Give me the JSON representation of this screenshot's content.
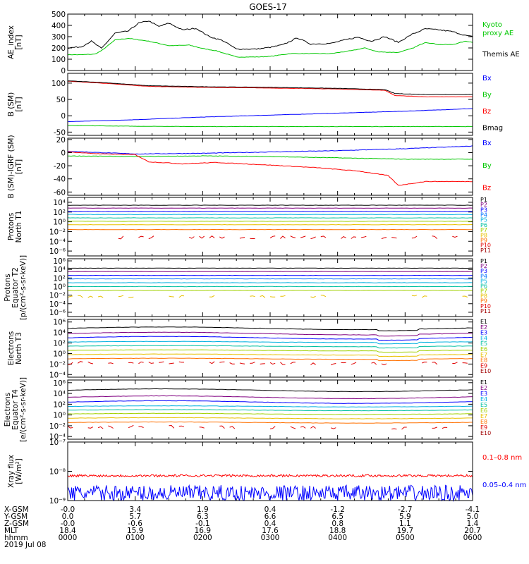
{
  "title": "GOES-17",
  "footer": {
    "row_labels": [
      "X-GSM",
      "Y-GSM",
      "Z-GSM",
      "MLT",
      "hhmm"
    ],
    "date": "2019 Jul 08",
    "columns": [
      [
        "-0.0",
        "0.0",
        "-0.0",
        "18.4",
        "0000"
      ],
      [
        "3.4",
        "5.7",
        "-0.6",
        "15.9",
        "0100"
      ],
      [
        "1.9",
        "6.3",
        "-0.1",
        "16.9",
        "0200"
      ],
      [
        "0.4",
        "6.6",
        "0.4",
        "17.6",
        "0300"
      ],
      [
        "-1.2",
        "6.5",
        "0.8",
        "18.8",
        "0400"
      ],
      [
        "-2.7",
        "5.9",
        "1.1",
        "19.7",
        "0500"
      ],
      [
        "-4.1",
        "5.0",
        "1.4",
        "20.7",
        "0600"
      ]
    ]
  },
  "chart_data": [
    {
      "type": "line",
      "ylabel": "AE_index\n[nT]",
      "ylim": [
        0,
        500
      ],
      "yticks": [
        "0",
        "100",
        "200",
        "300",
        "400",
        "500"
      ],
      "x_hours": [
        0,
        6
      ],
      "legend": [
        {
          "text": "Kyoto",
          "color": "#00c800"
        },
        {
          "text": "proxy AE",
          "color": "#00c800"
        },
        {
          "text": "Themis AE",
          "color": "#000000"
        }
      ],
      "series": [
        {
          "name": "Kyoto proxy AE",
          "color": "#00c800",
          "x": [
            0,
            0.2,
            0.4,
            0.5,
            0.7,
            0.9,
            1.2,
            1.5,
            1.8,
            2.0,
            2.2,
            2.5,
            2.8,
            3.0,
            3.3,
            3.6,
            3.9,
            4.2,
            4.4,
            4.6,
            4.9,
            5.1,
            5.3,
            5.5,
            5.7,
            5.9,
            6.0
          ],
          "y": [
            140,
            140,
            145,
            175,
            270,
            285,
            260,
            220,
            225,
            195,
            175,
            120,
            120,
            125,
            150,
            150,
            150,
            175,
            200,
            165,
            160,
            195,
            250,
            230,
            230,
            260,
            250
          ]
        },
        {
          "name": "Themis AE",
          "color": "#000000",
          "x": [
            0,
            0.2,
            0.35,
            0.5,
            0.7,
            0.9,
            1.05,
            1.2,
            1.35,
            1.5,
            1.7,
            1.9,
            2.1,
            2.3,
            2.5,
            2.8,
            3.0,
            3.2,
            3.4,
            3.6,
            3.9,
            4.1,
            4.3,
            4.5,
            4.7,
            4.9,
            5.1,
            5.3,
            5.5,
            5.7,
            5.9,
            6.0
          ],
          "y": [
            200,
            210,
            260,
            195,
            330,
            350,
            420,
            440,
            390,
            420,
            360,
            375,
            300,
            265,
            190,
            190,
            205,
            230,
            290,
            235,
            240,
            270,
            295,
            260,
            300,
            250,
            320,
            370,
            360,
            345,
            310,
            300
          ]
        }
      ]
    },
    {
      "type": "line",
      "ylabel": "B (SM)\n[nT]",
      "ylim": [
        -60,
        130
      ],
      "yticks": [
        "-50",
        "0",
        "50",
        "100"
      ],
      "ytick_values": [
        -50,
        0,
        50,
        100
      ],
      "legend": [
        {
          "text": "Bx",
          "color": "#0000ff"
        },
        {
          "text": "By",
          "color": "#00c800"
        },
        {
          "text": "Bz",
          "color": "#ff0000"
        },
        {
          "text": "Bmag",
          "color": "#000000"
        }
      ],
      "series": [
        {
          "name": "Bx",
          "color": "#0000ff",
          "x": [
            0,
            1,
            2,
            3,
            4,
            5,
            6
          ],
          "y": [
            -18,
            -12,
            -4,
            2,
            8,
            14,
            22
          ]
        },
        {
          "name": "By",
          "color": "#00c800",
          "x": [
            0,
            1,
            2,
            3,
            4,
            5,
            6
          ],
          "y": [
            -30,
            -32,
            -33,
            -33,
            -33,
            -33,
            -33
          ]
        },
        {
          "name": "Bz",
          "color": "#ff0000",
          "x": [
            0,
            0.5,
            1.2,
            2.0,
            3.0,
            4.0,
            4.7,
            4.85,
            5.3,
            6.0
          ],
          "y": [
            106,
            100,
            90,
            87,
            85,
            82,
            78,
            62,
            58,
            58
          ]
        },
        {
          "name": "Bmag",
          "color": "#000000",
          "x": [
            0,
            0.5,
            1.2,
            2.0,
            3.0,
            4.0,
            4.7,
            4.85,
            5.3,
            6.0
          ],
          "y": [
            107,
            102,
            92,
            89,
            87,
            84,
            80,
            68,
            65,
            65
          ]
        }
      ]
    },
    {
      "type": "line",
      "ylabel": "B (SM)-IGRF (SM)\n[nT]",
      "ylim": [
        -65,
        22
      ],
      "yticks": [
        "-60",
        "-40",
        "-20",
        "0",
        "20"
      ],
      "ytick_values": [
        -60,
        -40,
        -20,
        0,
        20
      ],
      "legend": [
        {
          "text": "Bx",
          "color": "#0000ff"
        },
        {
          "text": "By",
          "color": "#00c800"
        },
        {
          "text": "Bz",
          "color": "#ff0000"
        }
      ],
      "series": [
        {
          "name": "Bx",
          "color": "#0000ff",
          "x": [
            0,
            1,
            2,
            3,
            4,
            5,
            6
          ],
          "y": [
            2,
            -2,
            -1,
            1,
            3,
            6,
            10
          ]
        },
        {
          "name": "By",
          "color": "#00c800",
          "x": [
            0,
            1,
            2,
            3,
            4,
            5,
            6
          ],
          "y": [
            -5,
            -6,
            -5,
            -6,
            -8,
            -10,
            -10
          ]
        },
        {
          "name": "Bz",
          "color": "#ff0000",
          "x": [
            0,
            0.5,
            1.0,
            1.2,
            1.7,
            2.2,
            3.0,
            3.7,
            4.3,
            4.75,
            4.9,
            5.3,
            6.0
          ],
          "y": [
            1,
            -2,
            -3,
            -14,
            -17,
            -15,
            -19,
            -23,
            -28,
            -35,
            -50,
            -44,
            -44
          ]
        }
      ]
    },
    {
      "type": "line",
      "ylabel": "Protons\nNorth T1",
      "yscale": "log",
      "yticks": [
        "10⁴",
        "10²",
        "10⁰",
        "10⁻²",
        "10⁻⁴",
        "10⁻⁶"
      ],
      "ytick_exponents": [
        4,
        2,
        0,
        -2,
        -4,
        -6
      ],
      "ylim_exp": [
        -7,
        5
      ],
      "legend": [
        {
          "text": "P1",
          "color": "#000000"
        },
        {
          "text": "P2",
          "color": "#800080"
        },
        {
          "text": "P3",
          "color": "#0000ff"
        },
        {
          "text": "P4",
          "color": "#0070ff"
        },
        {
          "text": "P5",
          "color": "#00b0e0"
        },
        {
          "text": "P6",
          "color": "#00c0a0"
        },
        {
          "text": "P7",
          "color": "#a0d000"
        },
        {
          "text": "P8",
          "color": "#e8c000"
        },
        {
          "text": "P9",
          "color": "#ff7000"
        },
        {
          "text": "P10",
          "color": "#e00000"
        },
        {
          "text": "P11",
          "color": "#a00000"
        }
      ],
      "levels_exp": [
        3.4,
        2.8,
        2.1,
        1.5,
        0.8,
        0.1,
        -0.6,
        -1.6,
        -3.2
      ]
    },
    {
      "type": "line",
      "ylabel": "Protons\nEquator T2\n[p/(cm²-s-sr-keV)]",
      "yscale": "log",
      "yticks": [
        "10⁶",
        "10⁴",
        "10²",
        "10⁰",
        "10⁻²",
        "10⁻⁴",
        "10⁻⁶"
      ],
      "ytick_exponents": [
        6,
        4,
        2,
        0,
        -2,
        -4,
        -6
      ],
      "ylim_exp": [
        -7,
        6.5
      ],
      "legend": [
        {
          "text": "P1",
          "color": "#000000"
        },
        {
          "text": "P2",
          "color": "#800080"
        },
        {
          "text": "P3",
          "color": "#0000ff"
        },
        {
          "text": "P4",
          "color": "#0070ff"
        },
        {
          "text": "P5",
          "color": "#00b0e0"
        },
        {
          "text": "P6",
          "color": "#00c0a0"
        },
        {
          "text": "P7",
          "color": "#a0d000"
        },
        {
          "text": "P8",
          "color": "#e8c000"
        },
        {
          "text": "P9",
          "color": "#ff7000"
        },
        {
          "text": "P10",
          "color": "#e00000"
        },
        {
          "text": "P11",
          "color": "#a00000"
        }
      ],
      "levels_exp": [
        4.3,
        3.5,
        2.6,
        1.8,
        0.9,
        0.0,
        -0.9,
        -2.3
      ]
    },
    {
      "type": "line",
      "ylabel": "Electrons\nNorth T3",
      "yscale": "log",
      "yticks": [
        "10⁶",
        "10⁴",
        "10²",
        "10⁰",
        "10⁻²",
        "10⁻⁴"
      ],
      "ytick_exponents": [
        6,
        4,
        2,
        0,
        -2,
        -4
      ],
      "ylim_exp": [
        -4.5,
        6.5
      ],
      "legend": [
        {
          "text": "E1",
          "color": "#000000"
        },
        {
          "text": "E2",
          "color": "#800080"
        },
        {
          "text": "E3",
          "color": "#0000ff"
        },
        {
          "text": "E4",
          "color": "#00b0e0"
        },
        {
          "text": "E5",
          "color": "#00c0a0"
        },
        {
          "text": "E6",
          "color": "#a0d000"
        },
        {
          "text": "E7",
          "color": "#e8c000"
        },
        {
          "text": "E8",
          "color": "#ff7000"
        },
        {
          "text": "E9",
          "color": "#e00000"
        },
        {
          "text": "E10",
          "color": "#a00000"
        }
      ],
      "levels_exp": [
        4.8,
        3.8,
        3.0,
        2.2,
        1.4,
        0.6,
        -0.2,
        -1.0,
        -1.8
      ]
    },
    {
      "type": "line",
      "ylabel": "Electrons\nEquator T4\n[e/(cm²-s-sr-keV)]",
      "yscale": "log",
      "yticks": [
        "10⁶",
        "10⁴",
        "10²",
        "10⁰",
        "10⁻²",
        "10⁻⁴"
      ],
      "ytick_exponents": [
        6,
        4,
        2,
        0,
        -2,
        -4
      ],
      "ylim_exp": [
        -4.5,
        6.5
      ],
      "legend": [
        {
          "text": "E1",
          "color": "#000000"
        },
        {
          "text": "E2",
          "color": "#800080"
        },
        {
          "text": "E3",
          "color": "#0000ff"
        },
        {
          "text": "E4",
          "color": "#00b0e0"
        },
        {
          "text": "E5",
          "color": "#00c0a0"
        },
        {
          "text": "E6",
          "color": "#a0d000"
        },
        {
          "text": "E7",
          "color": "#e8c000"
        },
        {
          "text": "E8",
          "color": "#ff7000"
        },
        {
          "text": "E9",
          "color": "#e00000"
        },
        {
          "text": "E10",
          "color": "#a00000"
        }
      ],
      "levels_exp": [
        4.6,
        3.3,
        2.4,
        1.6,
        0.9,
        0.2,
        -0.6,
        -1.4,
        -2.3
      ]
    },
    {
      "type": "line",
      "ylabel": "Xray flux\n[W/m²]",
      "yscale": "log",
      "yticks": [
        "10⁻⁷",
        "10⁻⁸",
        "10⁻⁹"
      ],
      "ytick_exponents": [
        -7,
        -8,
        -9
      ],
      "ylim_exp": [
        -9,
        -7
      ],
      "legend": [
        {
          "text": "0.1–0.8 nm",
          "color": "#ff0000"
        },
        {
          "text": "0.05–0.4 nm",
          "color": "#0000ff"
        }
      ],
      "series": [
        {
          "name": "0.1–0.8 nm",
          "color": "#ff0000",
          "mean_exp": -8.15
        },
        {
          "name": "0.05–0.4 nm",
          "color": "#0000ff",
          "mean_exp": -8.75
        }
      ]
    }
  ]
}
